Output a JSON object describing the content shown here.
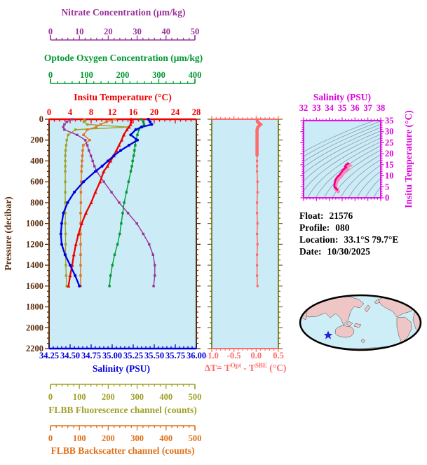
{
  "colors": {
    "nitrate": "#993399",
    "oxygen": "#009933",
    "temperature": "#ee0000",
    "pressure": "#5a2a0a",
    "salinity": "#0000dd",
    "fluorescence": "#a0a028",
    "backscatter": "#e07018",
    "delta_t": "#ff6b6b",
    "delta_t_side": "#6b6b10",
    "ts_axis": "#dd00dd",
    "ts_curve": "#ee0088",
    "ts_curve_halo": "#ff88bb",
    "isopycnal": "#8899aa",
    "plot_bg": "#cbecf6",
    "map_land": "#efc6c6",
    "map_ocean": "#cdeef7",
    "map_outline": "#000000",
    "marker_star": "#2222dd",
    "info_text": "#000000"
  },
  "rulers": {
    "nitrate": {
      "title": "Nitrate Concentration (μm/kg)",
      "min": 0,
      "max": 50,
      "ticks": [
        0,
        10,
        20,
        30,
        40,
        50
      ],
      "minor_step": 2
    },
    "oxygen": {
      "title": "Optode Oxygen Concentration (μm/kg)",
      "min": 0,
      "max": 400,
      "ticks": [
        0,
        100,
        200,
        300,
        400
      ],
      "minor_step": 20
    },
    "fluorescence": {
      "title": "FLBB Fluorescence channel (counts)",
      "min": 0,
      "max": 500,
      "ticks": [
        0,
        100,
        200,
        300,
        400,
        500
      ],
      "minor_step": 20
    },
    "backscatter": {
      "title": "FLBB Backscatter channel (counts)",
      "min": 0,
      "max": 500,
      "ticks": [
        0,
        100,
        200,
        300,
        400,
        500
      ],
      "minor_step": 20
    }
  },
  "main_plot": {
    "top_axis": {
      "title": "Insitu Temperature (°C)",
      "min": 0,
      "max": 28,
      "ticks": [
        0,
        4,
        8,
        12,
        16,
        20,
        24,
        28
      ],
      "minor_step": 1
    },
    "bottom_axis": {
      "title": "Salinity (PSU)",
      "min": 34.25,
      "max": 36.0,
      "ticks": [
        "34.25",
        "34.50",
        "34.75",
        "35.00",
        "35.25",
        "35.50",
        "35.75",
        "36.00"
      ],
      "minor_step": 0.05
    },
    "left_axis": {
      "title": "Pressure (decibar)",
      "min": 0,
      "max": 2200,
      "ticks": [
        0,
        200,
        400,
        600,
        800,
        1000,
        1200,
        1400,
        1600,
        1800,
        2000,
        2200
      ],
      "minor_step": 50
    }
  },
  "chart_data": [
    {
      "type": "line",
      "ylabel": "Pressure (decibar)",
      "ylim": [
        0,
        2200
      ],
      "y_inverted": true,
      "pressure_dbar": [
        0,
        25,
        50,
        75,
        100,
        150,
        200,
        250,
        300,
        350,
        400,
        450,
        500,
        600,
        700,
        800,
        900,
        1000,
        1100,
        1200,
        1300,
        1400,
        1500,
        1600
      ],
      "series": [
        {
          "name": "FLBB Fluorescence channel (counts)",
          "color": "#a0a028",
          "marker": "square",
          "xlim": [
            0,
            500
          ],
          "values": [
            120,
            118,
            130,
            270,
            90,
            65,
            60,
            58,
            56,
            55,
            55,
            55,
            55,
            55,
            55,
            55,
            55,
            55,
            56,
            56,
            56,
            57,
            58,
            60
          ]
        },
        {
          "name": "FLBB Backscatter channel (counts)",
          "color": "#e07018",
          "marker": "square",
          "xlim": [
            0,
            500
          ],
          "values": [
            225,
            195,
            175,
            160,
            130,
            117,
            138,
            116,
            114,
            113,
            112,
            111,
            110,
            109,
            108,
            108,
            107,
            107,
            107,
            107,
            107,
            107,
            107,
            107
          ]
        },
        {
          "name": "Nitrate Concentration (μm/kg)",
          "color": "#993399",
          "marker": "square",
          "xlim": [
            0,
            50
          ],
          "values": [
            7.9,
            6.0,
            5.2,
            4.8,
            5.2,
            9.5,
            12.3,
            13.0,
            13.5,
            14.2,
            14.8,
            15.4,
            16.2,
            18.6,
            21.2,
            23.8,
            26.8,
            29.8,
            32.0,
            34.0,
            35.3,
            35.9,
            35.9,
            35.5
          ]
        },
        {
          "name": "Optode Oxygen Concentration (μm/kg)",
          "color": "#009933",
          "marker": "square",
          "xlim": [
            0,
            400
          ],
          "values": [
            250,
            256,
            258,
            250,
            244,
            240,
            236,
            234,
            232,
            230,
            227,
            225,
            222,
            216,
            210,
            204,
            200,
            196,
            192,
            186,
            178,
            172,
            167,
            164
          ]
        },
        {
          "name": "Insitu Temperature (°C)",
          "color": "#ee0000",
          "marker": "triangle",
          "xlim": [
            0,
            28
          ],
          "values": [
            15.6,
            15.6,
            15.5,
            15.2,
            14.8,
            14.2,
            13.8,
            13.3,
            12.8,
            12.3,
            11.7,
            11.1,
            10.4,
            9.7,
            8.8,
            8.0,
            7.0,
            6.2,
            5.6,
            5.1,
            4.7,
            4.4,
            4.0,
            3.7
          ]
        },
        {
          "name": "Salinity (PSU)",
          "color": "#0000dd",
          "marker": "circle",
          "xlim": [
            34.25,
            36.0
          ],
          "values": [
            35.43,
            35.45,
            35.47,
            35.35,
            35.28,
            35.22,
            35.3,
            35.2,
            35.1,
            35.02,
            34.95,
            34.88,
            34.8,
            34.66,
            34.55,
            34.47,
            34.42,
            34.4,
            34.39,
            34.4,
            34.44,
            34.5,
            34.56,
            34.61
          ]
        }
      ]
    },
    {
      "type": "line",
      "title_parts": {
        "p1": "ΔT= T",
        "sup1": "Opt",
        "p2": " - T",
        "sup2": "SBE",
        "p3": " (°C)"
      },
      "xlim": [
        -1.0,
        0.5
      ],
      "xticks": [
        "-1.0",
        "-0.5",
        "0.0",
        "0.5"
      ],
      "minor_step": 0.1,
      "ylim": [
        0,
        2200
      ],
      "pressure_dbar": [
        0,
        25,
        50,
        75,
        100,
        150,
        200,
        250,
        300,
        350,
        400,
        450,
        500,
        600,
        700,
        800,
        900,
        1000,
        1100,
        1200,
        1300,
        1400,
        1500,
        1600
      ],
      "values": [
        0.02,
        0.03,
        0.1,
        0.04,
        0.02,
        0.02,
        0.02,
        0.02,
        0.02,
        0.02,
        0.02,
        0.02,
        0.02,
        0.03,
        0.03,
        0.02,
        0.02,
        0.03,
        0.02,
        0.03,
        0.02,
        0.02,
        0.02,
        0.03
      ]
    },
    {
      "type": "line",
      "title": "Salinity (PSU)",
      "ylabel": "Insitu Temperature (°C)",
      "xlim": [
        32,
        38
      ],
      "xticks": [
        32,
        33,
        34,
        35,
        36,
        37,
        38
      ],
      "ylim": [
        0,
        35
      ],
      "yticks": [
        0,
        5,
        10,
        15,
        20,
        25,
        30,
        35
      ],
      "curve_source": "temperature vs salinity pairs from profile series",
      "isopycnal_sigmas": [
        21,
        21.5,
        22,
        22.5,
        23,
        23.5,
        24,
        24.5,
        25,
        25.5,
        26,
        26.5,
        27,
        27.5,
        28,
        28.5,
        29
      ]
    }
  ],
  "info_panel": {
    "lines": [
      {
        "label": "Float:",
        "value": "21576"
      },
      {
        "label": "Profile:",
        "value": "080"
      },
      {
        "label": "Location:",
        "value": "33.1°S  79.7°E"
      },
      {
        "label": "Date:",
        "value": "10/30/2025"
      }
    ]
  },
  "map": {
    "projection_outline": "ellipse",
    "marker": {
      "shape": "star",
      "color": "#2222dd"
    }
  }
}
